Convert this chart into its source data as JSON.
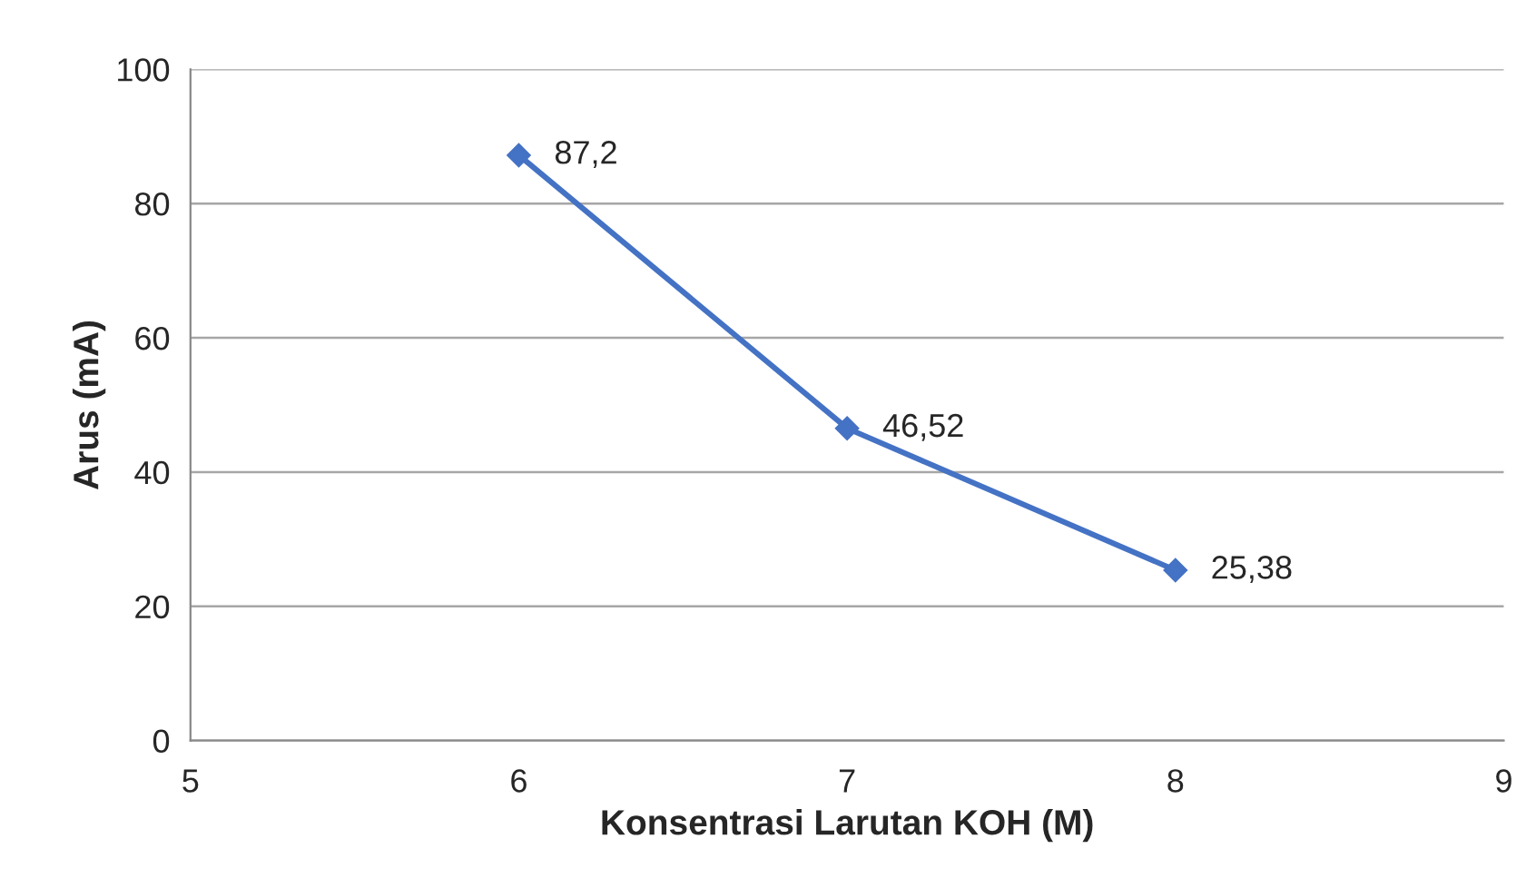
{
  "chart_data": {
    "type": "line",
    "xlabel": "Konsentrasi Larutan KOH (M)",
    "ylabel": "Arus (mA)",
    "x": [
      6,
      7,
      8
    ],
    "series": [
      {
        "color": "#4472c4",
        "values": [
          87.2,
          46.52,
          25.38
        ],
        "value_labels": [
          "87,2",
          "46,52",
          "25,38"
        ]
      }
    ],
    "xlim": [
      5,
      9
    ],
    "xticks": [
      5,
      6,
      7,
      8,
      9
    ],
    "ylim": [
      0,
      100
    ],
    "yticks": [
      0,
      20,
      40,
      60,
      80,
      100
    ],
    "grid": "y",
    "marker": "diamond",
    "line_style": "solid",
    "legend": false
  }
}
